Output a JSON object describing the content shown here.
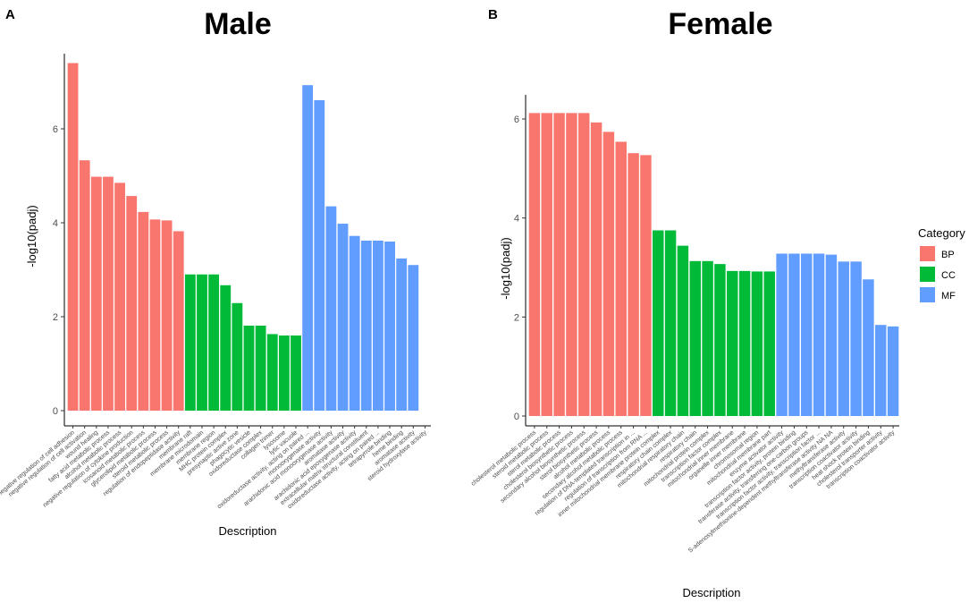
{
  "panel_labels": [
    "A",
    "B"
  ],
  "legend": {
    "title": "Category",
    "items": [
      {
        "key": "BP",
        "label": "BP",
        "color": "#F8766D"
      },
      {
        "key": "CC",
        "label": "CC",
        "color": "#00BA38"
      },
      {
        "key": "MF",
        "label": "MF",
        "color": "#619CFF"
      }
    ]
  },
  "chart_data": [
    {
      "type": "bar",
      "title": "Male",
      "xlabel": "Description",
      "ylabel": "-log10(padj)",
      "ylim": [
        0,
        7.6
      ],
      "yticks": [
        0,
        2,
        4,
        6
      ],
      "categories": [
        "negative regulation of cell adhesion",
        "negative regulation of cell activation",
        "wound healing",
        "fatty acid metabolic process",
        "alcohol metabolic process",
        "negative regulation of cytokine production",
        "icosanoid metabolic process",
        "glycerolipid metabolic process",
        "steroid metabolic process",
        "regulation of endopeptidase activity",
        "membrane raft",
        "membrane microdomain",
        "membrane region",
        "MHC protein complex",
        "presynaptic active zone",
        "phagocytic vesicle",
        "oxidoreductase complex",
        "collagen trimer",
        "lysosome",
        "lytic vacuole",
        "oxidoreductase activity, acting on paired ...",
        "monooxygenase activity",
        "arachidonic acid monooxygenase activity",
        "aromatase activity",
        "arachidonic acid epoxygenase activity",
        "extracellular matrix structural constituent",
        "oxidoreductase activity, acting on paired ...",
        "tetrapyrrole binding",
        "heme binding",
        "aromatase activity",
        "steroid hydroxylase activity"
      ],
      "values": [
        7.4,
        5.33,
        4.98,
        4.98,
        4.85,
        4.57,
        4.23,
        4.07,
        4.05,
        3.82,
        2.9,
        2.9,
        2.9,
        2.67,
        2.29,
        1.81,
        1.81,
        1.63,
        1.6,
        1.6,
        6.93,
        6.61,
        4.35,
        3.98,
        3.72,
        3.62,
        3.62,
        3.6,
        3.24,
        3.1,
        null
      ],
      "bar_categories": [
        "BP",
        "BP",
        "BP",
        "BP",
        "BP",
        "BP",
        "BP",
        "BP",
        "BP",
        "BP",
        "CC",
        "CC",
        "CC",
        "CC",
        "CC",
        "CC",
        "CC",
        "CC",
        "CC",
        "CC",
        "MF",
        "MF",
        "MF",
        "MF",
        "MF",
        "MF",
        "MF",
        "MF",
        "MF",
        "MF",
        "MF"
      ]
    },
    {
      "type": "bar",
      "title": "Female",
      "xlabel": "Description",
      "ylabel": "-log10(padj)",
      "ylim": [
        0,
        6.45
      ],
      "yticks": [
        0,
        2,
        4,
        6
      ],
      "categories": [
        "cholesterol metabolic process",
        "steroid metabolic process",
        "sterol metabolic process",
        "cholesterol biosynthetic process",
        "secondary alcohol biosynthetic process",
        "sterol biosynthetic process",
        "alcohol metabolic process",
        "secondary alcohol metabolic process",
        "regulation of DNA-templated transcription in ...",
        "regulation of transcription from RNA ...",
        "inner mitochondrial membrane protein complex",
        "respiratory chain complex",
        "mitochondrial respiratory chain",
        "respiratory chain",
        "mitochondrial protein complex",
        "transcription factor complex",
        "mitochondrial inner membrane",
        "organelle inner membrane",
        "chromosomal region",
        "mitochondrial membrane part",
        "enzyme activator activity",
        "transcription factor activity, protein binding",
        "transferase activity, transferring one-carbon groups",
        "transcription factor activity, transcription factor ...",
        "S-adenosylmethionine-dependent methyltransferase activity NA NA",
        "methyltransferase activity",
        "transcription coactivator activity",
        "heat shock protein binding",
        "cholesterol transporter activity",
        "transcription coactivator activity"
      ],
      "values": [
        6.12,
        6.12,
        6.12,
        6.12,
        6.12,
        5.93,
        5.74,
        5.54,
        5.31,
        5.27,
        3.75,
        3.75,
        3.44,
        3.13,
        3.13,
        3.07,
        2.93,
        2.93,
        2.92,
        2.92,
        3.28,
        3.28,
        3.28,
        3.28,
        3.26,
        3.12,
        3.12,
        2.76,
        1.84,
        1.81
      ],
      "bar_categories": [
        "BP",
        "BP",
        "BP",
        "BP",
        "BP",
        "BP",
        "BP",
        "BP",
        "BP",
        "BP",
        "CC",
        "CC",
        "CC",
        "CC",
        "CC",
        "CC",
        "CC",
        "CC",
        "CC",
        "CC",
        "MF",
        "MF",
        "MF",
        "MF",
        "MF",
        "MF",
        "MF",
        "MF",
        "MF",
        "MF"
      ]
    }
  ]
}
